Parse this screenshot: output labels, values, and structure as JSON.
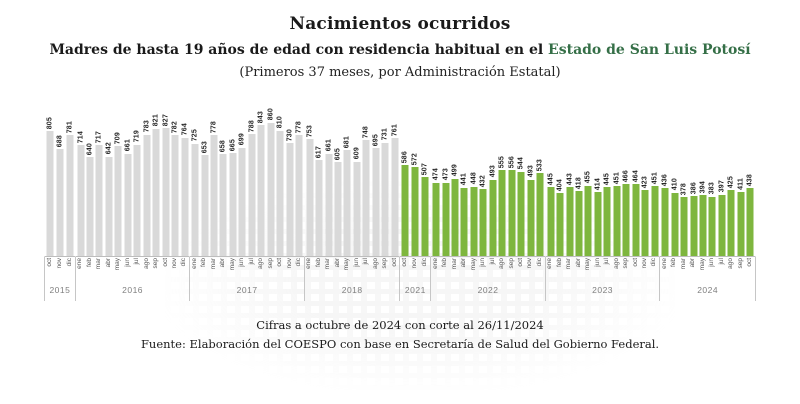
{
  "title": "Nacimientos ocurridos",
  "subtitle": {
    "prefix": "Madres de hasta 19 años de edad con residencia habitual en el ",
    "highlight": "Estado de San Luis Potosí",
    "line2": "(Primeros 37 meses, por Administración Estatal)"
  },
  "footer": {
    "line1": "Cifras a octubre de 2024 con corte al 26/11/2024",
    "line2": "Fuente: Elaboración del COESPO con base en Secretaría de Salud del Gobierno Federal."
  },
  "colors": {
    "bar_previous": "#d9d9d9",
    "bar_current": "#7eb63e",
    "highlight_text": "#356f47",
    "axis_line": "#bdbdbd",
    "value_label": "#262626",
    "month_label": "#595959",
    "year_label": "#7f7f7f"
  },
  "chart_data": {
    "type": "bar",
    "title": "Nacimientos ocurridos",
    "xlabel": "",
    "ylabel": "",
    "ylim": [
      0,
      900
    ],
    "grid": false,
    "legend_position": "none",
    "value_labels": "rotated-90-above-bars",
    "series_colors": {
      "previous": "#d9d9d9",
      "current": "#7eb63e"
    },
    "groups": [
      {
        "year": "2015",
        "series": "previous",
        "months": [
          "oct",
          "nov",
          "dic"
        ],
        "values": [
          805,
          688,
          781
        ]
      },
      {
        "year": "2016",
        "series": "previous",
        "months": [
          "ene",
          "feb",
          "mar",
          "abr",
          "may",
          "jun",
          "jul",
          "ago",
          "sep",
          "oct",
          "nov",
          "dic"
        ],
        "values": [
          714,
          640,
          717,
          642,
          709,
          661,
          719,
          783,
          821,
          827,
          782,
          764
        ]
      },
      {
        "year": "2017",
        "series": "previous",
        "months": [
          "ene",
          "feb",
          "mar",
          "abr",
          "may",
          "jun",
          "jul",
          "ago",
          "sep",
          "oct",
          "nov",
          "dic"
        ],
        "values": [
          725,
          653,
          778,
          658,
          665,
          699,
          788,
          843,
          860,
          810,
          730,
          778
        ]
      },
      {
        "year": "2018",
        "series": "previous",
        "months": [
          "ene",
          "feb",
          "mar",
          "abr",
          "may",
          "jun",
          "jul",
          "ago",
          "sep",
          "oct"
        ],
        "values": [
          753,
          617,
          661,
          605,
          681,
          609,
          748,
          695,
          731,
          761
        ]
      },
      {
        "year": "2021",
        "series": "current",
        "months": [
          "oct",
          "nov",
          "dic"
        ],
        "values": [
          586,
          572,
          507
        ]
      },
      {
        "year": "2022",
        "series": "current",
        "months": [
          "ene",
          "feb",
          "mar",
          "abr",
          "may",
          "jun",
          "jul",
          "ago",
          "sep",
          "oct",
          "nov",
          "dic"
        ],
        "values": [
          474,
          473,
          499,
          441,
          448,
          432,
          493,
          555,
          556,
          544,
          493,
          533
        ]
      },
      {
        "year": "2023",
        "series": "current",
        "months": [
          "ene",
          "feb",
          "mar",
          "abr",
          "may",
          "jun",
          "jul",
          "ago",
          "sep",
          "oct",
          "nov",
          "dic"
        ],
        "values": [
          445,
          404,
          443,
          418,
          455,
          414,
          445,
          451,
          466,
          464,
          423,
          451
        ]
      },
      {
        "year": "2024",
        "series": "current",
        "months": [
          "ene",
          "feb",
          "mar",
          "abr",
          "may",
          "jun",
          "jul",
          "ago",
          "sep",
          "oct"
        ],
        "values": [
          436,
          410,
          378,
          386,
          394,
          383,
          397,
          425,
          411,
          438
        ]
      }
    ]
  }
}
